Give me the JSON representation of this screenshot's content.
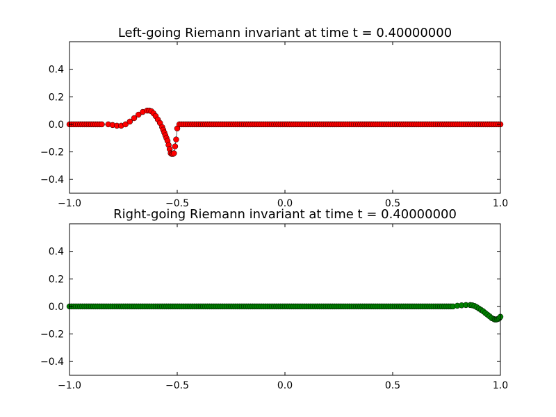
{
  "chart_data": [
    {
      "type": "scatter",
      "title": "Left-going Riemann invariant at time t =     0.40000000",
      "xlabel": "",
      "ylabel": "",
      "xlim": [
        -1.0,
        1.0
      ],
      "ylim": [
        -0.5,
        0.6
      ],
      "xticks": [
        -1.0,
        -0.5,
        0.0,
        0.5,
        1.0
      ],
      "xtick_labels": [
        "−1.0",
        "−0.5",
        "0.0",
        "0.5",
        "1.0"
      ],
      "yticks": [
        -0.4,
        -0.2,
        0.0,
        0.2,
        0.4
      ],
      "ytick_labels": [
        "−0.4",
        "−0.2",
        "0.0",
        "0.2",
        "0.4"
      ],
      "grid": false,
      "marker_color": "#ff0000",
      "series": [
        {
          "x": [
            -0.85,
            -0.82,
            -0.8,
            -0.78,
            -0.76,
            -0.74,
            -0.72,
            -0.7,
            -0.68,
            -0.66,
            -0.64,
            -0.63,
            -0.62,
            -0.61,
            -0.6,
            -0.59,
            -0.58,
            -0.57,
            -0.565,
            -0.56,
            -0.555,
            -0.55,
            -0.545,
            -0.54,
            -0.535,
            -0.53,
            -0.525,
            -0.52,
            -0.515,
            -0.51,
            -0.505,
            -0.5
          ],
          "y": [
            0.0,
            0.0,
            -0.005,
            -0.01,
            -0.01,
            0.0,
            0.02,
            0.045,
            0.07,
            0.09,
            0.1,
            0.1,
            0.095,
            0.08,
            0.06,
            0.035,
            0.01,
            -0.02,
            -0.04,
            -0.06,
            -0.08,
            -0.1,
            -0.12,
            -0.15,
            -0.18,
            -0.21,
            -0.215,
            -0.215,
            -0.21,
            -0.16,
            -0.11,
            -0.03
          ]
        }
      ]
    },
    {
      "type": "scatter",
      "title": "Right-going Riemann invariant at time t =     0.40000000",
      "xlabel": "",
      "ylabel": "",
      "xlim": [
        -1.0,
        1.0
      ],
      "ylim": [
        -0.5,
        0.6
      ],
      "xticks": [
        -1.0,
        -0.5,
        0.0,
        0.5,
        1.0
      ],
      "xtick_labels": [
        "−1.0",
        "−0.5",
        "0.0",
        "0.5",
        "1.0"
      ],
      "yticks": [
        -0.4,
        -0.2,
        0.0,
        0.2,
        0.4
      ],
      "ytick_labels": [
        "−0.4",
        "−0.2",
        "0.0",
        "0.2",
        "0.4"
      ],
      "grid": false,
      "marker_color": "#007f00",
      "series": [
        {
          "x": [
            0.78,
            0.8,
            0.82,
            0.84,
            0.86,
            0.87,
            0.88,
            0.89,
            0.9,
            0.91,
            0.92,
            0.93,
            0.94,
            0.95,
            0.96,
            0.97,
            0.975,
            0.98,
            0.985,
            0.99,
            0.995,
            1.0
          ],
          "y": [
            0.0,
            0.005,
            0.008,
            0.01,
            0.01,
            0.008,
            0.003,
            -0.005,
            -0.015,
            -0.025,
            -0.035,
            -0.048,
            -0.06,
            -0.072,
            -0.085,
            -0.092,
            -0.095,
            -0.095,
            -0.093,
            -0.09,
            -0.085,
            -0.075
          ]
        }
      ]
    }
  ]
}
